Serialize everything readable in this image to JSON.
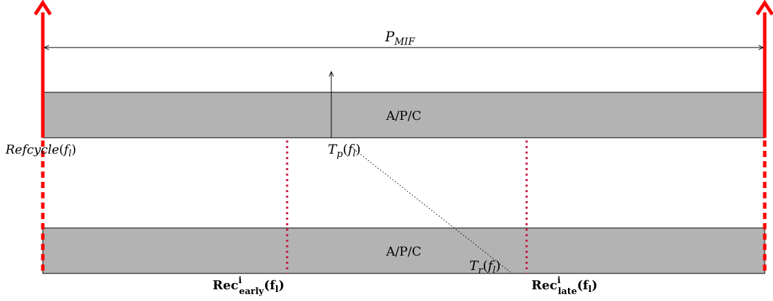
{
  "period": {
    "var": "P",
    "sub": "MIF"
  },
  "task_upper": {
    "label": "A/P/C"
  },
  "task_lower": {
    "label": "A/P/C"
  },
  "ref_cycle": {
    "name": "Refcycle",
    "open": "(",
    "arg": "f",
    "arg_sub": "l",
    "close": ")"
  },
  "tp": {
    "var": "T",
    "sub": "p",
    "open": "(",
    "arg": "f",
    "arg_sub": "l",
    "close": ")"
  },
  "tr": {
    "var": "T",
    "sub": "r",
    "open": "(",
    "arg": "f",
    "arg_sub": "l",
    "close": ")"
  },
  "rec_early": {
    "base": "Rec",
    "sup": "i",
    "sub": "early",
    "open": "(",
    "arg": "f",
    "arg_sub": "l",
    "close": ")"
  },
  "rec_late": {
    "base": "Rec",
    "sup": "i",
    "sub": "late",
    "open": "(",
    "arg": "f",
    "arg_sub": "l",
    "close": ")"
  },
  "colors": {
    "ref_arrow": "#ff0000",
    "rec_marker": "#c8103c",
    "task_fill": "#b3b3b3",
    "ink": "#000000"
  }
}
